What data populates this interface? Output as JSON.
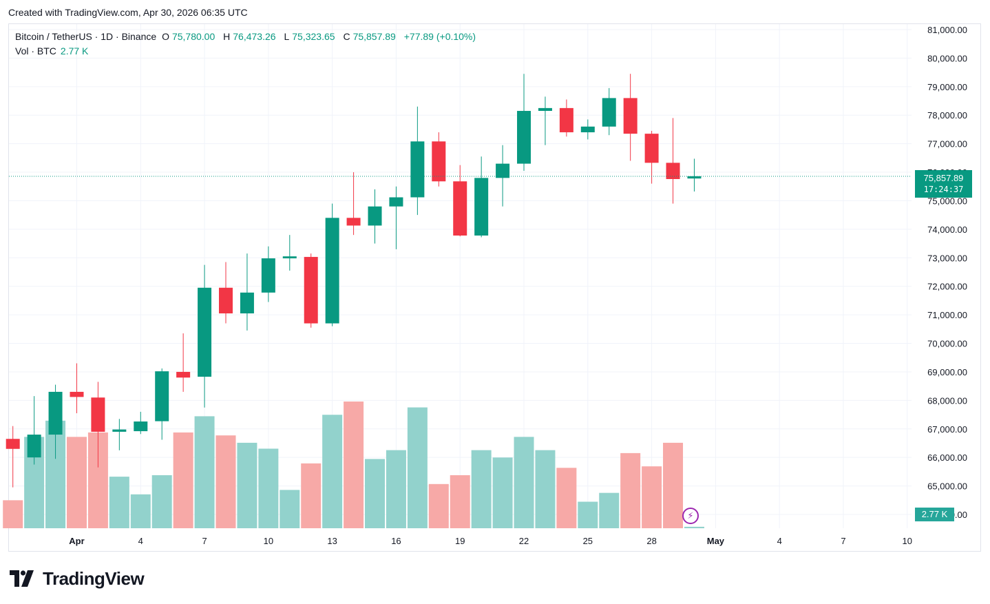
{
  "header": {
    "created_text": "Created with TradingView.com, Apr 30, 2026 06:35 UTC"
  },
  "legend": {
    "symbol": "Bitcoin / TetherUS · 1D · Binance",
    "o_label": "O",
    "o_value": "75,780.00",
    "h_label": "H",
    "h_value": "76,473.26",
    "l_label": "L",
    "l_value": "75,323.65",
    "c_label": "C",
    "c_value": "75,857.89",
    "change": "+77.89 (+0.10%)",
    "vol_label": "Vol · BTC",
    "vol_value": "2.77 K"
  },
  "price_tag": {
    "price": "75,857.89",
    "countdown": "17:24:37"
  },
  "vol_tag": {
    "value": "2.77 K"
  },
  "brand": {
    "name": "TradingView"
  },
  "colors": {
    "up": "#089981",
    "down": "#f23645",
    "vol_up": "#92d2cc",
    "vol_down": "#f7a9a7",
    "grid": "#f0f3fa"
  },
  "icons": {
    "lightning": "lightning-icon",
    "logo": "tradingview-logo-icon"
  },
  "chart_data": {
    "type": "candlestick",
    "title": "Bitcoin / TetherUS · 1D · Binance",
    "y_ticks": [
      "81,000.00",
      "80,000.00",
      "79,000.00",
      "78,000.00",
      "77,000.00",
      "76,000.00",
      "75,000.00",
      "74,000.00",
      "73,000.00",
      "72,000.00",
      "71,000.00",
      "70,000.00",
      "69,000.00",
      "68,000.00",
      "67,000.00",
      "66,000.00",
      "65,000.00",
      "64,000.00"
    ],
    "y_tick_values": [
      81000,
      80000,
      79000,
      78000,
      77000,
      76000,
      75000,
      74000,
      73000,
      72000,
      71000,
      70000,
      69000,
      68000,
      67000,
      66000,
      65000,
      64000
    ],
    "x_ticks": [
      {
        "label": "Apr",
        "day": 0
      },
      {
        "label": "4",
        "day": 3
      },
      {
        "label": "7",
        "day": 6
      },
      {
        "label": "10",
        "day": 9
      },
      {
        "label": "13",
        "day": 12
      },
      {
        "label": "16",
        "day": 15
      },
      {
        "label": "19",
        "day": 18
      },
      {
        "label": "22",
        "day": 21
      },
      {
        "label": "25",
        "day": 24
      },
      {
        "label": "28",
        "day": 27
      },
      {
        "label": "May",
        "day": 30
      },
      {
        "label": "4",
        "day": 33
      },
      {
        "label": "7",
        "day": 36
      },
      {
        "label": "10",
        "day": 39
      }
    ],
    "last_price": 75857.89,
    "candles": [
      {
        "date": "Mar 29",
        "o": 66650,
        "h": 67100,
        "l": 64950,
        "c": 66300,
        "v": 0.19
      },
      {
        "date": "Mar 30",
        "o": 66000,
        "h": 68150,
        "l": 65750,
        "c": 66800,
        "v": 0.62
      },
      {
        "date": "Mar 31",
        "o": 66800,
        "h": 68550,
        "l": 65950,
        "c": 68300,
        "v": 0.73
      },
      {
        "date": "Apr 1",
        "o": 68300,
        "h": 69300,
        "l": 67550,
        "c": 68120,
        "v": 0.62
      },
      {
        "date": "Apr 2",
        "o": 68100,
        "h": 68650,
        "l": 65650,
        "c": 66900,
        "v": 0.65
      },
      {
        "date": "Apr 3",
        "o": 66900,
        "h": 67350,
        "l": 66250,
        "c": 66980,
        "v": 0.35
      },
      {
        "date": "Apr 4",
        "o": 66920,
        "h": 67600,
        "l": 66820,
        "c": 67260,
        "v": 0.23
      },
      {
        "date": "Apr 5",
        "o": 67270,
        "h": 69120,
        "l": 66620,
        "c": 69020,
        "v": 0.36
      },
      {
        "date": "Apr 6",
        "o": 69000,
        "h": 70350,
        "l": 68300,
        "c": 68800,
        "v": 0.65
      },
      {
        "date": "Apr 7",
        "o": 68830,
        "h": 72750,
        "l": 67750,
        "c": 71950,
        "v": 0.76
      },
      {
        "date": "Apr 8",
        "o": 71950,
        "h": 72850,
        "l": 70700,
        "c": 71050,
        "v": 0.63
      },
      {
        "date": "Apr 9",
        "o": 71050,
        "h": 73150,
        "l": 70450,
        "c": 71780,
        "v": 0.58
      },
      {
        "date": "Apr 10",
        "o": 71780,
        "h": 73400,
        "l": 71450,
        "c": 72980,
        "v": 0.54
      },
      {
        "date": "Apr 11",
        "o": 72980,
        "h": 73800,
        "l": 72550,
        "c": 73050,
        "v": 0.26
      },
      {
        "date": "Apr 12",
        "o": 73030,
        "h": 73150,
        "l": 70550,
        "c": 70700,
        "v": 0.44
      },
      {
        "date": "Apr 13",
        "o": 70700,
        "h": 74900,
        "l": 70600,
        "c": 74400,
        "v": 0.77
      },
      {
        "date": "Apr 14",
        "o": 74400,
        "h": 76000,
        "l": 73800,
        "c": 74130,
        "v": 0.86
      },
      {
        "date": "Apr 15",
        "o": 74130,
        "h": 75400,
        "l": 73500,
        "c": 74800,
        "v": 0.47
      },
      {
        "date": "Apr 16",
        "o": 74800,
        "h": 75500,
        "l": 73300,
        "c": 75120,
        "v": 0.53
      },
      {
        "date": "Apr 17",
        "o": 75120,
        "h": 78300,
        "l": 74500,
        "c": 77080,
        "v": 0.82
      },
      {
        "date": "Apr 18",
        "o": 77080,
        "h": 77400,
        "l": 75500,
        "c": 75680,
        "v": 0.3
      },
      {
        "date": "Apr 19",
        "o": 75680,
        "h": 76250,
        "l": 73750,
        "c": 73780,
        "v": 0.36
      },
      {
        "date": "Apr 20",
        "o": 73780,
        "h": 76550,
        "l": 73720,
        "c": 75800,
        "v": 0.53
      },
      {
        "date": "Apr 21",
        "o": 75800,
        "h": 76950,
        "l": 74800,
        "c": 76300,
        "v": 0.48
      },
      {
        "date": "Apr 22",
        "o": 76300,
        "h": 79450,
        "l": 76050,
        "c": 78150,
        "v": 0.62
      },
      {
        "date": "Apr 23",
        "o": 78150,
        "h": 78650,
        "l": 76950,
        "c": 78250,
        "v": 0.53
      },
      {
        "date": "Apr 24",
        "o": 78250,
        "h": 78550,
        "l": 77250,
        "c": 77400,
        "v": 0.41
      },
      {
        "date": "Apr 25",
        "o": 77400,
        "h": 77850,
        "l": 77150,
        "c": 77600,
        "v": 0.18
      },
      {
        "date": "Apr 26",
        "o": 77600,
        "h": 78950,
        "l": 77300,
        "c": 78600,
        "v": 0.24
      },
      {
        "date": "Apr 27",
        "o": 78600,
        "h": 79450,
        "l": 76400,
        "c": 77350,
        "v": 0.51
      },
      {
        "date": "Apr 28",
        "o": 77350,
        "h": 77450,
        "l": 75600,
        "c": 76330,
        "v": 0.42
      },
      {
        "date": "Apr 29",
        "o": 76330,
        "h": 77900,
        "l": 74900,
        "c": 75760,
        "v": 0.58
      },
      {
        "date": "Apr 30",
        "o": 75780,
        "h": 76473.26,
        "l": 75323.65,
        "c": 75857.89,
        "v": 0.01
      }
    ]
  }
}
